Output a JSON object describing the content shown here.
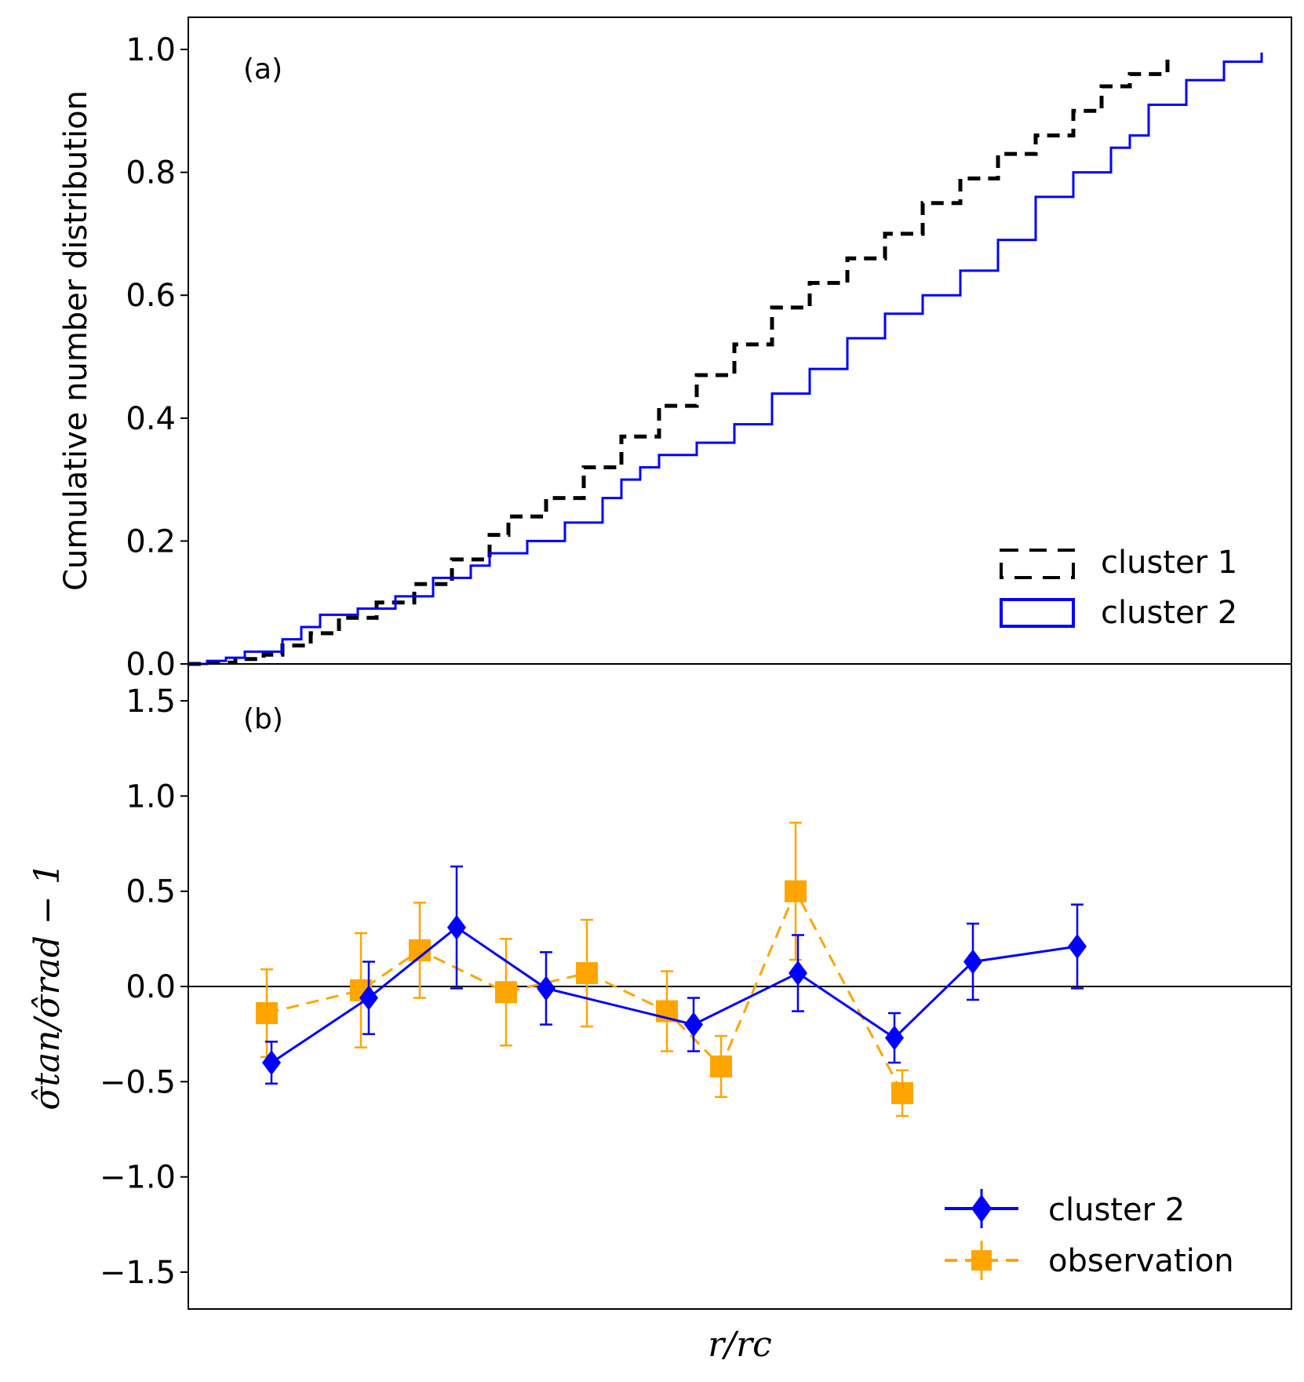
{
  "chart_data": [
    {
      "type": "line",
      "panel_label": "(a)",
      "ylabel": "Cumulative number distribution",
      "ylim": [
        0.0,
        1.0
      ],
      "yticks": [
        "0.0",
        "0.2",
        "0.4",
        "0.6",
        "0.8",
        "1.0"
      ],
      "xticks_shown": false,
      "legend_position": "lower-right",
      "series": [
        {
          "name": "cluster 1",
          "style": "step-dashed",
          "color": "#000000",
          "points": [
            [
              0.0,
              0.0
            ],
            [
              0.02,
              0.002
            ],
            [
              0.05,
              0.008
            ],
            [
              0.08,
              0.015
            ],
            [
              0.1,
              0.03
            ],
            [
              0.13,
              0.05
            ],
            [
              0.16,
              0.075
            ],
            [
              0.2,
              0.1
            ],
            [
              0.24,
              0.13
            ],
            [
              0.28,
              0.17
            ],
            [
              0.32,
              0.21
            ],
            [
              0.34,
              0.24
            ],
            [
              0.38,
              0.27
            ],
            [
              0.42,
              0.32
            ],
            [
              0.46,
              0.37
            ],
            [
              0.5,
              0.42
            ],
            [
              0.54,
              0.47
            ],
            [
              0.58,
              0.52
            ],
            [
              0.62,
              0.58
            ],
            [
              0.66,
              0.62
            ],
            [
              0.7,
              0.66
            ],
            [
              0.74,
              0.7
            ],
            [
              0.78,
              0.75
            ],
            [
              0.82,
              0.79
            ],
            [
              0.86,
              0.83
            ],
            [
              0.9,
              0.86
            ],
            [
              0.94,
              0.9
            ],
            [
              0.97,
              0.94
            ],
            [
              1.0,
              0.96
            ],
            [
              1.04,
              0.99
            ]
          ]
        },
        {
          "name": "cluster 2",
          "style": "step-solid",
          "color": "#0000ff",
          "points": [
            [
              0.0,
              0.0
            ],
            [
              0.02,
              0.005
            ],
            [
              0.04,
              0.01
            ],
            [
              0.06,
              0.02
            ],
            [
              0.1,
              0.04
            ],
            [
              0.12,
              0.06
            ],
            [
              0.14,
              0.08
            ],
            [
              0.18,
              0.09
            ],
            [
              0.22,
              0.11
            ],
            [
              0.26,
              0.14
            ],
            [
              0.28,
              0.14
            ],
            [
              0.3,
              0.16
            ],
            [
              0.32,
              0.18
            ],
            [
              0.36,
              0.2
            ],
            [
              0.4,
              0.23
            ],
            [
              0.44,
              0.27
            ],
            [
              0.46,
              0.3
            ],
            [
              0.48,
              0.32
            ],
            [
              0.5,
              0.34
            ],
            [
              0.54,
              0.36
            ],
            [
              0.58,
              0.39
            ],
            [
              0.62,
              0.44
            ],
            [
              0.66,
              0.48
            ],
            [
              0.7,
              0.53
            ],
            [
              0.74,
              0.57
            ],
            [
              0.78,
              0.6
            ],
            [
              0.82,
              0.64
            ],
            [
              0.86,
              0.69
            ],
            [
              0.9,
              0.76
            ],
            [
              0.94,
              0.8
            ],
            [
              0.98,
              0.84
            ],
            [
              1.0,
              0.86
            ],
            [
              1.02,
              0.91
            ],
            [
              1.06,
              0.95
            ],
            [
              1.1,
              0.98
            ],
            [
              1.14,
              0.995
            ]
          ]
        }
      ]
    },
    {
      "type": "line",
      "panel_label": "(b)",
      "ylabel": "σ̂tan/σ̂rad − 1",
      "ylim": [
        -1.7,
        1.7
      ],
      "yticks": [
        "1.5",
        "1.0",
        "0.5",
        "0.0",
        "−0.5",
        "−1.0",
        "−1.5"
      ],
      "xlabel": "r/rc",
      "xticks_shown": false,
      "reference_line": 0.0,
      "legend_position": "lower-right",
      "series": [
        {
          "name": "cluster 2",
          "style": "solid",
          "marker": "diamond",
          "color": "#0000ff",
          "x": [
            1,
            2,
            3,
            4,
            5,
            6,
            7,
            8,
            9
          ],
          "y": [
            -0.4,
            -0.06,
            0.31,
            -0.01,
            -0.2,
            0.07,
            -0.27,
            0.13,
            0.21
          ],
          "err": [
            0.11,
            0.19,
            0.32,
            0.19,
            0.14,
            0.2,
            0.13,
            0.2,
            0.22
          ]
        },
        {
          "name": "observation",
          "style": "dashed",
          "marker": "square",
          "color": "#ffa500",
          "x": [
            1,
            2,
            3,
            4,
            5,
            6,
            7,
            8,
            9
          ],
          "y": [
            -0.14,
            -0.02,
            0.19,
            -0.03,
            0.07,
            -0.13,
            -0.42,
            0.5,
            -0.56
          ],
          "err": [
            0.23,
            0.3,
            0.25,
            0.28,
            0.28,
            0.21,
            0.16,
            0.36,
            0.12
          ]
        }
      ]
    }
  ]
}
